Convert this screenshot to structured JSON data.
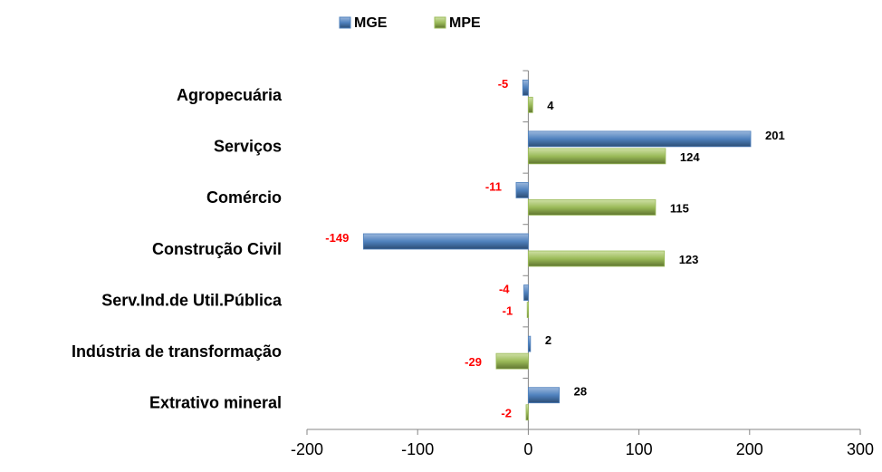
{
  "chart_data": {
    "type": "bar",
    "orientation": "horizontal",
    "categories": [
      "Agropecuária",
      "Serviços",
      "Comércio",
      "Construção Civil",
      "Serv.Ind.de Util.Pública",
      "Indústria de transformação",
      "Extrativo mineral"
    ],
    "series": [
      {
        "name": "MGE",
        "color": "#4f81bd",
        "values": [
          -5,
          201,
          -11,
          -149,
          -4,
          2,
          28
        ]
      },
      {
        "name": "MPE",
        "color": "#9bbb59",
        "values": [
          4,
          124,
          115,
          123,
          -1,
          -29,
          -2
        ]
      }
    ],
    "xlim": [
      -200,
      300
    ],
    "xticks": [
      -200,
      -100,
      0,
      100,
      200,
      300
    ],
    "legend": "top",
    "grid": false
  }
}
